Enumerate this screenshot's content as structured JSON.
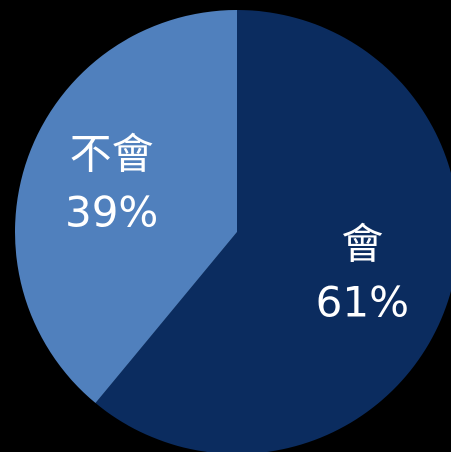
{
  "chart_data": {
    "type": "pie",
    "categories": [
      "會",
      "不會"
    ],
    "values": [
      61,
      39
    ],
    "value_labels": [
      "61%",
      "39%"
    ],
    "colors": [
      "#0b2c5f",
      "#5080bd"
    ]
  }
}
